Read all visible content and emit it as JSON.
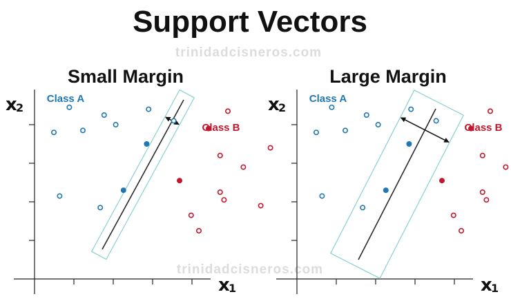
{
  "header": {
    "title": "Support Vectors"
  },
  "watermark": "trinidadcisneros.com",
  "colors": {
    "class_a": "#1f77b4",
    "class_b": "#c0192e",
    "margin_box": "#8fd4d0",
    "axis": "#222222",
    "watermark": "#dcdcdc"
  },
  "panels": [
    {
      "title": "Small Margin",
      "class_a_label": "Class A",
      "class_b_label": "Class B",
      "x_axis": {
        "var": "x",
        "sub": "1"
      },
      "y_axis": {
        "var": "x",
        "sub": "2"
      },
      "margin": "small",
      "points_a": [
        [
          1.8,
          8.9
        ],
        [
          2.5,
          7.7
        ],
        [
          3.6,
          8.5
        ],
        [
          4.2,
          8.0
        ],
        [
          5.9,
          8.8
        ],
        [
          7.2,
          8.2
        ],
        [
          1.0,
          7.6
        ],
        [
          1.3,
          4.3
        ],
        [
          3.4,
          3.7
        ]
      ],
      "points_b": [
        [
          10.0,
          8.7
        ],
        [
          12.2,
          6.8
        ],
        [
          9.6,
          6.4
        ],
        [
          10.8,
          5.8
        ],
        [
          9.6,
          4.5
        ],
        [
          9.8,
          4.1
        ],
        [
          11.7,
          3.8
        ],
        [
          8.1,
          3.3
        ],
        [
          8.5,
          2.5
        ]
      ],
      "support_a": [
        [
          5.8,
          7.0
        ],
        [
          4.6,
          4.6
        ]
      ],
      "support_b": [
        [
          9.0,
          7.8
        ],
        [
          7.5,
          5.1
        ]
      ]
    },
    {
      "title": "Large Margin",
      "class_a_label": "Class A",
      "class_b_label": "Class B",
      "x_axis": {
        "var": "x",
        "sub": "1"
      },
      "y_axis": {
        "var": "x",
        "sub": "2"
      },
      "margin": "large",
      "points_a": [
        [
          1.8,
          8.9
        ],
        [
          2.5,
          7.7
        ],
        [
          3.6,
          8.5
        ],
        [
          4.2,
          8.0
        ],
        [
          5.9,
          8.8
        ],
        [
          7.2,
          8.2
        ],
        [
          1.0,
          7.6
        ],
        [
          1.3,
          4.3
        ],
        [
          3.4,
          3.7
        ]
      ],
      "points_b": [
        [
          10.0,
          8.7
        ],
        [
          12.2,
          6.8
        ],
        [
          9.6,
          6.4
        ],
        [
          10.8,
          5.8
        ],
        [
          9.6,
          4.5
        ],
        [
          9.8,
          4.1
        ],
        [
          11.7,
          3.8
        ],
        [
          8.1,
          3.3
        ],
        [
          8.5,
          2.5
        ]
      ],
      "support_a": [
        [
          5.8,
          7.0
        ],
        [
          4.6,
          4.6
        ]
      ],
      "support_b": [
        [
          9.0,
          7.8
        ],
        [
          7.5,
          5.1
        ]
      ]
    }
  ]
}
